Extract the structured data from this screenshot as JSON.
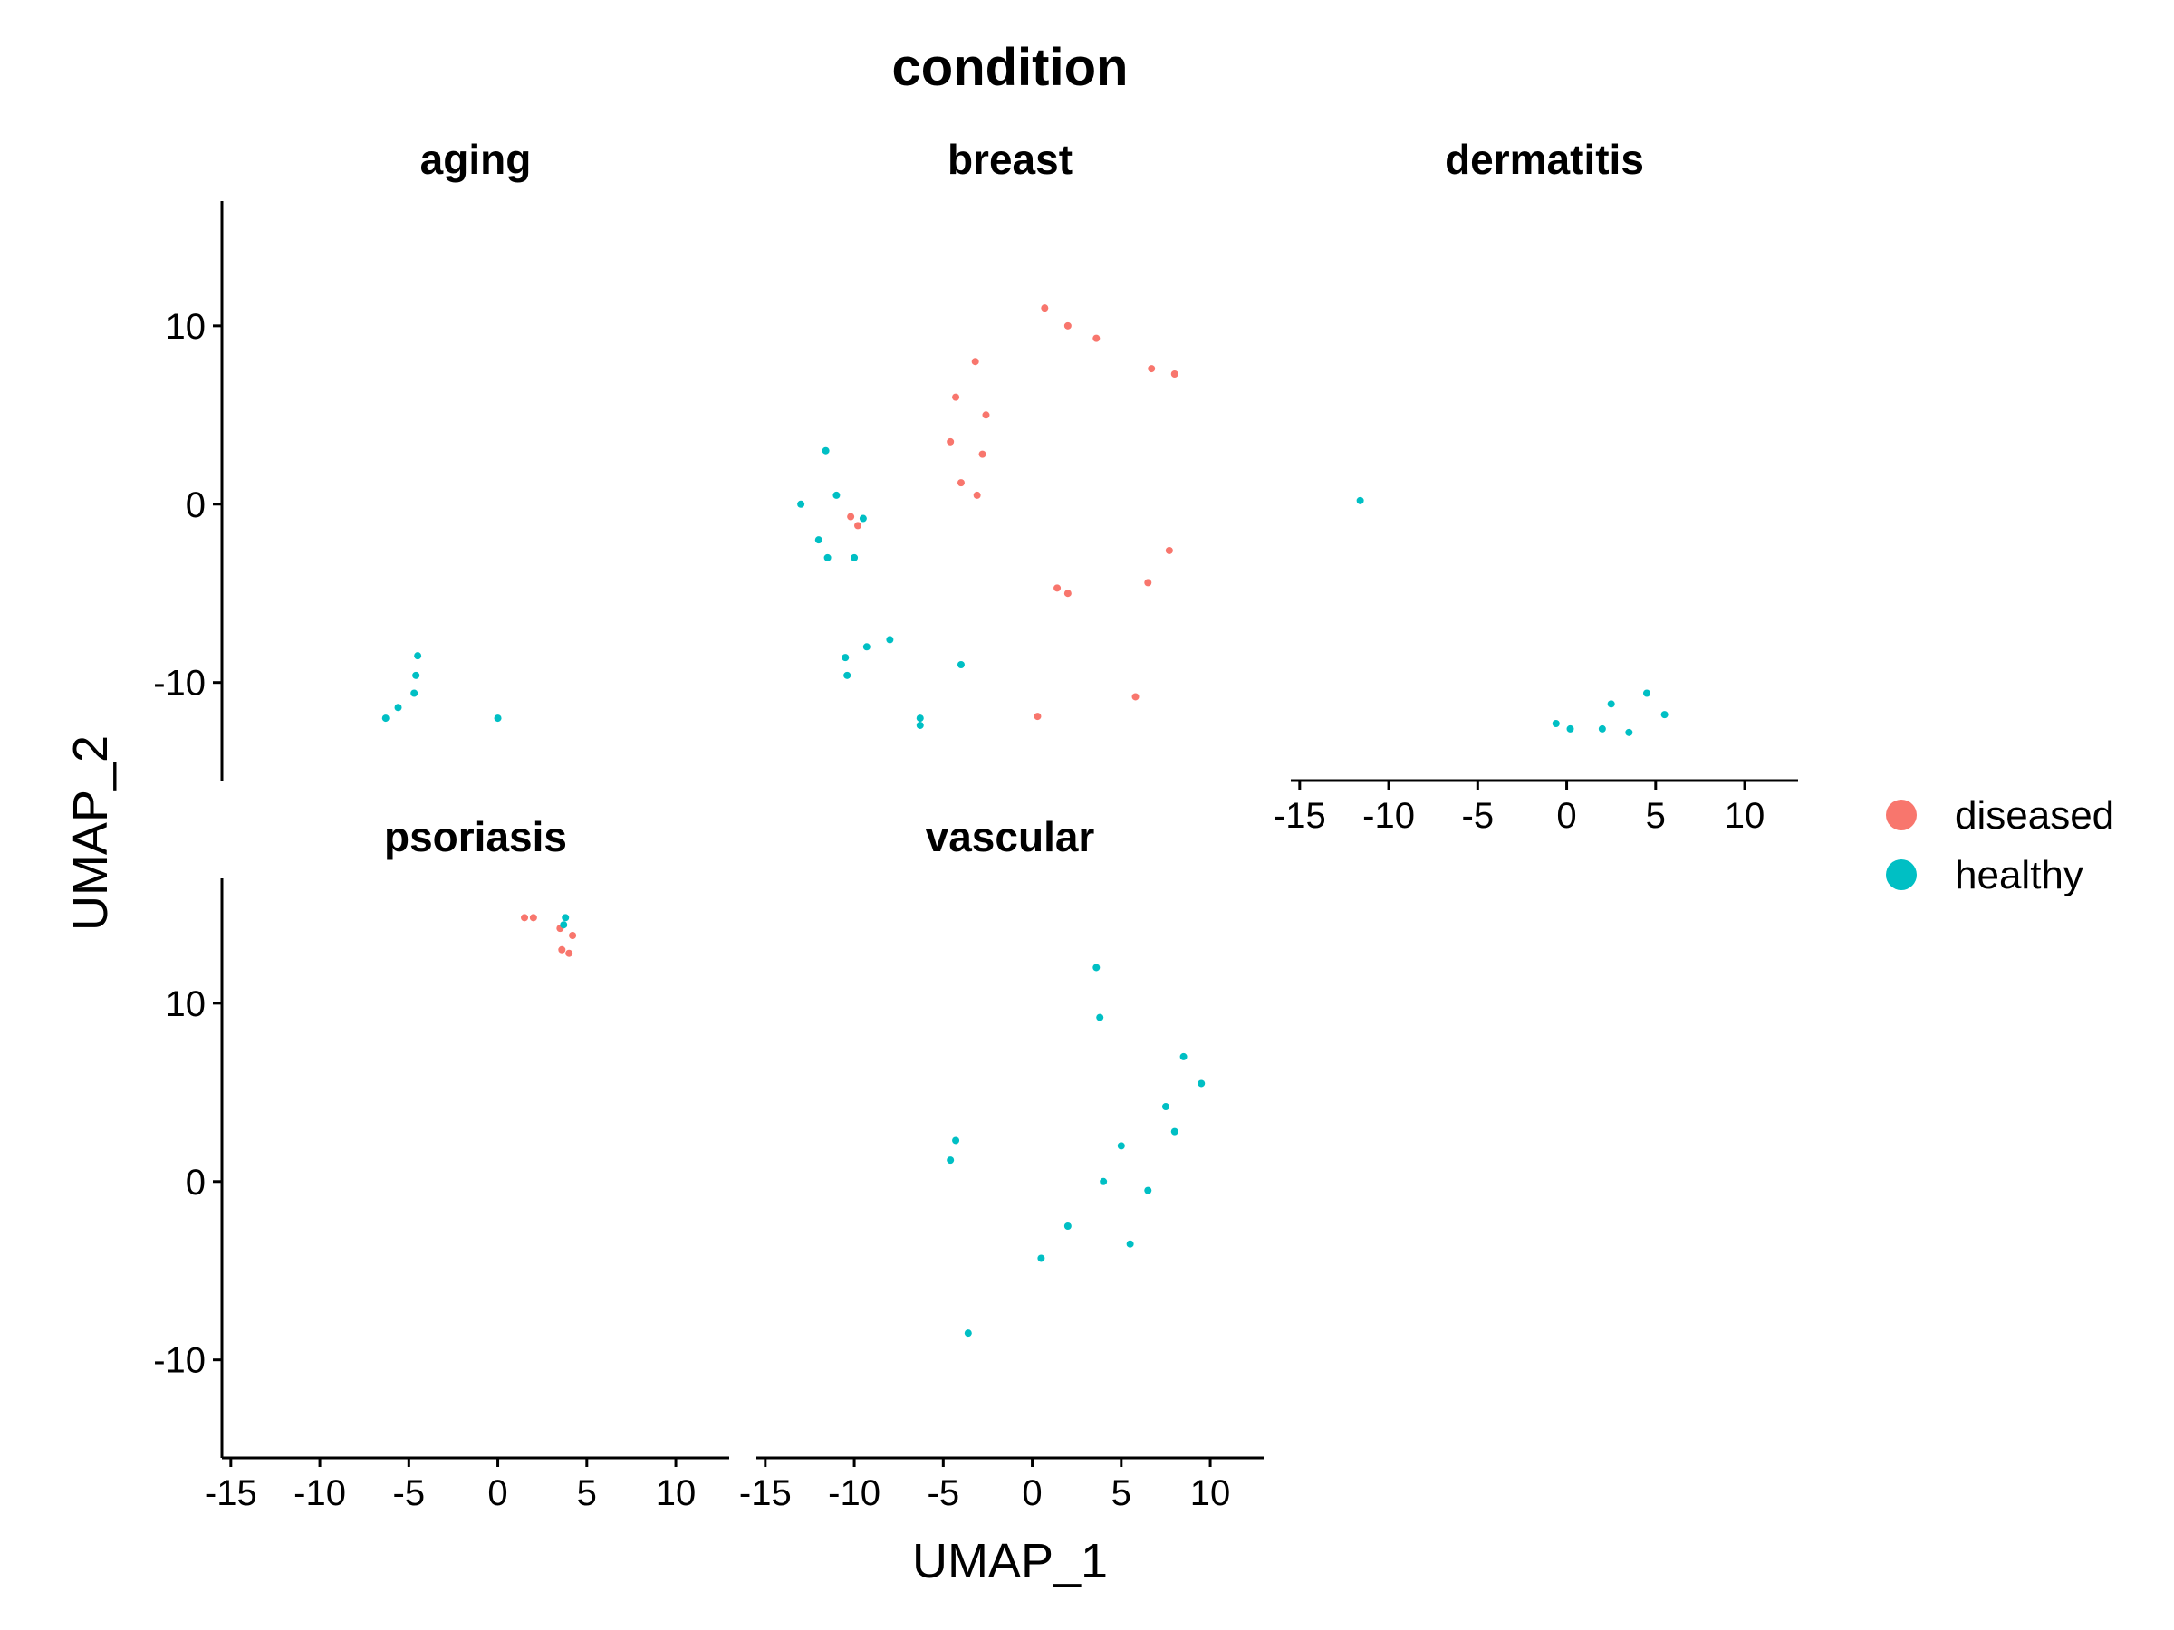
{
  "chart_data": {
    "type": "scatter",
    "title": "condition",
    "xlabel": "UMAP_1",
    "ylabel": "UMAP_2",
    "xlim": [
      -15.5,
      13
    ],
    "ylim": [
      -15.5,
      17
    ],
    "x_ticks": [
      -15,
      -10,
      -5,
      0,
      5,
      10
    ],
    "x_tick_labels": [
      "-15",
      "-10",
      "-5",
      "0",
      "5",
      "10"
    ],
    "y_ticks": [
      -10,
      0,
      10
    ],
    "y_tick_labels": [
      "-10",
      "0",
      "10"
    ],
    "grid": false,
    "legend_position": "right",
    "colors": {
      "diseased": "#F8766D",
      "healthy": "#00BFC4"
    },
    "legend": [
      {
        "label": "diseased",
        "color": "#F8766D"
      },
      {
        "label": "healthy",
        "color": "#00BFC4"
      }
    ],
    "panels": [
      {
        "name": "aging",
        "points": [
          {
            "x": -4.5,
            "y": -8.5,
            "group": "healthy"
          },
          {
            "x": -4.6,
            "y": -9.6,
            "group": "healthy"
          },
          {
            "x": -4.7,
            "y": -10.6,
            "group": "healthy"
          },
          {
            "x": -5.6,
            "y": -11.4,
            "group": "healthy"
          },
          {
            "x": -6.3,
            "y": -12.0,
            "group": "healthy"
          },
          {
            "x": 0.0,
            "y": -12.0,
            "group": "healthy"
          }
        ]
      },
      {
        "name": "breast",
        "points": [
          {
            "x": -3.2,
            "y": 8.0,
            "group": "diseased"
          },
          {
            "x": -4.3,
            "y": 6.0,
            "group": "diseased"
          },
          {
            "x": -2.6,
            "y": 5.0,
            "group": "diseased"
          },
          {
            "x": -4.6,
            "y": 3.5,
            "group": "diseased"
          },
          {
            "x": -2.8,
            "y": 2.8,
            "group": "diseased"
          },
          {
            "x": -4.0,
            "y": 1.2,
            "group": "diseased"
          },
          {
            "x": -3.1,
            "y": 0.5,
            "group": "diseased"
          },
          {
            "x": 0.7,
            "y": 11.0,
            "group": "diseased"
          },
          {
            "x": 2.0,
            "y": 10.0,
            "group": "diseased"
          },
          {
            "x": 3.6,
            "y": 9.3,
            "group": "diseased"
          },
          {
            "x": 6.7,
            "y": 7.6,
            "group": "diseased"
          },
          {
            "x": 8.0,
            "y": 7.3,
            "group": "diseased"
          },
          {
            "x": 7.7,
            "y": -2.6,
            "group": "diseased"
          },
          {
            "x": 1.4,
            "y": -4.7,
            "group": "diseased"
          },
          {
            "x": 2.0,
            "y": -5.0,
            "group": "diseased"
          },
          {
            "x": 6.5,
            "y": -4.4,
            "group": "diseased"
          },
          {
            "x": 5.8,
            "y": -10.8,
            "group": "diseased"
          },
          {
            "x": 0.3,
            "y": -11.9,
            "group": "diseased"
          },
          {
            "x": -10.2,
            "y": -0.7,
            "group": "diseased"
          },
          {
            "x": -9.8,
            "y": -1.2,
            "group": "diseased"
          },
          {
            "x": -11.6,
            "y": 3.0,
            "group": "healthy"
          },
          {
            "x": -13.0,
            "y": 0.0,
            "group": "healthy"
          },
          {
            "x": -11.0,
            "y": 0.5,
            "group": "healthy"
          },
          {
            "x": -9.5,
            "y": -0.8,
            "group": "healthy"
          },
          {
            "x": -12.0,
            "y": -2.0,
            "group": "healthy"
          },
          {
            "x": -11.5,
            "y": -3.0,
            "group": "healthy"
          },
          {
            "x": -10.0,
            "y": -3.0,
            "group": "healthy"
          },
          {
            "x": -10.5,
            "y": -8.6,
            "group": "healthy"
          },
          {
            "x": -9.3,
            "y": -8.0,
            "group": "healthy"
          },
          {
            "x": -8.0,
            "y": -7.6,
            "group": "healthy"
          },
          {
            "x": -10.4,
            "y": -9.6,
            "group": "healthy"
          },
          {
            "x": -4.0,
            "y": -9.0,
            "group": "healthy"
          },
          {
            "x": -6.3,
            "y": -12.0,
            "group": "healthy"
          },
          {
            "x": -6.3,
            "y": -12.4,
            "group": "healthy"
          }
        ]
      },
      {
        "name": "dermatitis",
        "points": [
          {
            "x": -11.6,
            "y": 0.2,
            "group": "healthy"
          },
          {
            "x": 2.5,
            "y": -11.2,
            "group": "healthy"
          },
          {
            "x": 4.5,
            "y": -10.6,
            "group": "healthy"
          },
          {
            "x": 5.5,
            "y": -11.8,
            "group": "healthy"
          },
          {
            "x": 3.5,
            "y": -12.8,
            "group": "healthy"
          },
          {
            "x": 2.0,
            "y": -12.6,
            "group": "healthy"
          },
          {
            "x": 0.2,
            "y": -12.6,
            "group": "healthy"
          },
          {
            "x": -0.6,
            "y": -12.3,
            "group": "healthy"
          }
        ]
      },
      {
        "name": "psoriasis",
        "points": [
          {
            "x": 1.5,
            "y": 14.8,
            "group": "diseased"
          },
          {
            "x": 2.0,
            "y": 14.8,
            "group": "diseased"
          },
          {
            "x": 3.5,
            "y": 14.2,
            "group": "diseased"
          },
          {
            "x": 4.2,
            "y": 13.8,
            "group": "diseased"
          },
          {
            "x": 3.6,
            "y": 13.0,
            "group": "diseased"
          },
          {
            "x": 4.0,
            "y": 12.8,
            "group": "diseased"
          },
          {
            "x": 3.8,
            "y": 14.8,
            "group": "healthy"
          },
          {
            "x": 3.7,
            "y": 14.4,
            "group": "healthy"
          }
        ]
      },
      {
        "name": "vascular",
        "points": [
          {
            "x": 3.6,
            "y": 12.0,
            "group": "healthy"
          },
          {
            "x": 3.8,
            "y": 9.2,
            "group": "healthy"
          },
          {
            "x": 8.5,
            "y": 7.0,
            "group": "healthy"
          },
          {
            "x": 9.5,
            "y": 5.5,
            "group": "healthy"
          },
          {
            "x": 7.5,
            "y": 4.2,
            "group": "healthy"
          },
          {
            "x": 8.0,
            "y": 2.8,
            "group": "healthy"
          },
          {
            "x": 5.0,
            "y": 2.0,
            "group": "healthy"
          },
          {
            "x": 4.0,
            "y": 0.0,
            "group": "healthy"
          },
          {
            "x": 6.5,
            "y": -0.5,
            "group": "healthy"
          },
          {
            "x": 2.0,
            "y": -2.5,
            "group": "healthy"
          },
          {
            "x": 5.5,
            "y": -3.5,
            "group": "healthy"
          },
          {
            "x": 0.5,
            "y": -4.3,
            "group": "healthy"
          },
          {
            "x": -4.3,
            "y": 2.3,
            "group": "healthy"
          },
          {
            "x": -4.6,
            "y": 1.2,
            "group": "healthy"
          },
          {
            "x": -3.6,
            "y": -8.5,
            "group": "healthy"
          }
        ]
      }
    ]
  }
}
